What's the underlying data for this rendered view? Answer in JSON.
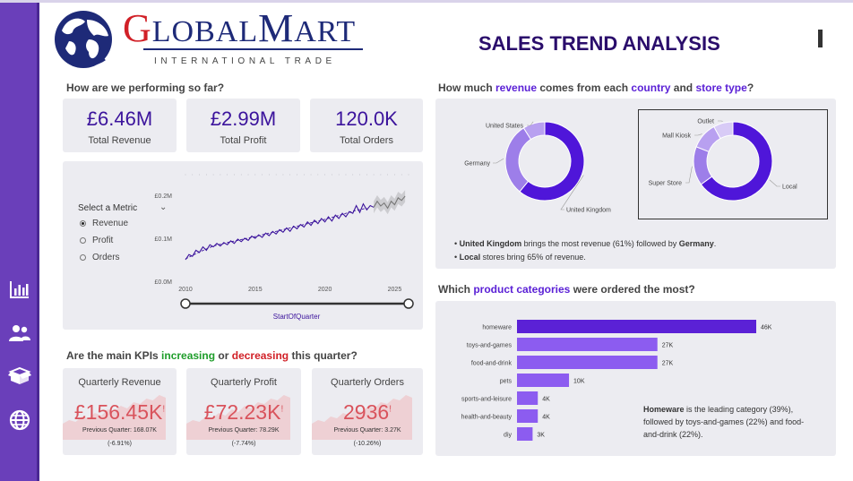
{
  "brand": {
    "logo_first_letter": "G",
    "logo_first_rest": "LOBAL",
    "logo_second_letter": "M",
    "logo_second_rest": "ART",
    "logo_tagline": "INTERNATIONAL TRADE"
  },
  "page_title": "SALES TREND ANALYSIS",
  "sidebar": {
    "items": [
      {
        "icon": "bar-chart-icon"
      },
      {
        "icon": "users-icon"
      },
      {
        "icon": "box-icon"
      },
      {
        "icon": "globe-icon"
      }
    ],
    "colors": {
      "background": "#6a3fba",
      "edge": "#4a2793"
    }
  },
  "performance": {
    "question": "How are we performing so far?",
    "kpis": [
      {
        "value": "£6.46M",
        "label": "Total Revenue"
      },
      {
        "value": "£2.99M",
        "label": "Total Profit"
      },
      {
        "value": "120.0K",
        "label": "Total Orders"
      }
    ]
  },
  "metric_selector": {
    "label": "Select a Metric",
    "options": [
      {
        "label": "Revenue",
        "selected": true
      },
      {
        "label": "Profit",
        "selected": false
      },
      {
        "label": "Orders",
        "selected": false
      }
    ]
  },
  "trend_chart": {
    "slider_label": "StartOfQuarter",
    "chart_data": {
      "type": "line",
      "y_ticks": [
        "£0.0M",
        "£0.1M",
        "£0.2M"
      ],
      "x_ticks": [
        "2010",
        "2015",
        "2020",
        "2025"
      ],
      "xlim": [
        2010,
        2026
      ],
      "ylim": [
        0,
        0.2
      ],
      "series": [
        {
          "values": [
            [
              2010.0,
              0.05
            ],
            [
              2010.25,
              0.062
            ],
            [
              2010.5,
              0.058
            ],
            [
              2010.75,
              0.072
            ],
            [
              2011.0,
              0.067
            ],
            [
              2011.25,
              0.08
            ],
            [
              2011.5,
              0.072
            ],
            [
              2011.75,
              0.085
            ],
            [
              2012.0,
              0.08
            ],
            [
              2012.25,
              0.088
            ],
            [
              2012.5,
              0.082
            ],
            [
              2012.75,
              0.09
            ],
            [
              2013.0,
              0.085
            ],
            [
              2013.25,
              0.094
            ],
            [
              2013.5,
              0.088
            ],
            [
              2013.75,
              0.098
            ],
            [
              2014.0,
              0.092
            ],
            [
              2014.25,
              0.1
            ],
            [
              2014.5,
              0.095
            ],
            [
              2014.75,
              0.105
            ],
            [
              2015.0,
              0.1
            ],
            [
              2015.25,
              0.108
            ],
            [
              2015.5,
              0.102
            ],
            [
              2015.75,
              0.112
            ],
            [
              2016.0,
              0.106
            ],
            [
              2016.25,
              0.116
            ],
            [
              2016.5,
              0.11
            ],
            [
              2016.75,
              0.12
            ],
            [
              2017.0,
              0.114
            ],
            [
              2017.25,
              0.124
            ],
            [
              2017.5,
              0.116
            ],
            [
              2017.75,
              0.128
            ],
            [
              2018.0,
              0.122
            ],
            [
              2018.25,
              0.132
            ],
            [
              2018.5,
              0.126
            ],
            [
              2018.75,
              0.138
            ],
            [
              2019.0,
              0.13
            ],
            [
              2019.25,
              0.142
            ],
            [
              2019.5,
              0.134
            ],
            [
              2019.75,
              0.146
            ],
            [
              2020.0,
              0.138
            ],
            [
              2020.25,
              0.15
            ],
            [
              2020.5,
              0.14
            ],
            [
              2020.75,
              0.154
            ],
            [
              2021.0,
              0.146
            ],
            [
              2021.25,
              0.158
            ],
            [
              2021.5,
              0.15
            ],
            [
              2021.75,
              0.162
            ],
            [
              2022.0,
              0.158
            ],
            [
              2022.25,
              0.176
            ],
            [
              2022.5,
              0.16
            ],
            [
              2022.75,
              0.18
            ],
            [
              2023.0,
              0.166
            ],
            [
              2023.25,
              0.176
            ],
            [
              2023.5,
              0.172
            ]
          ]
        },
        {
          "values": [
            [
              2010.0,
              0.052
            ],
            [
              2011.0,
              0.068
            ],
            [
              2012.0,
              0.082
            ],
            [
              2013.0,
              0.09
            ],
            [
              2014.0,
              0.097
            ],
            [
              2015.0,
              0.104
            ],
            [
              2016.0,
              0.112
            ],
            [
              2017.0,
              0.12
            ],
            [
              2018.0,
              0.128
            ],
            [
              2019.0,
              0.136
            ],
            [
              2020.0,
              0.144
            ],
            [
              2021.0,
              0.153
            ],
            [
              2022.0,
              0.163
            ],
            [
              2023.0,
              0.17
            ]
          ]
        },
        {
          "values": [
            [
              2023.5,
              0.172
            ],
            [
              2023.75,
              0.186
            ],
            [
              2024.0,
              0.175
            ],
            [
              2024.25,
              0.182
            ],
            [
              2024.5,
              0.17
            ],
            [
              2024.75,
              0.186
            ],
            [
              2025.0,
              0.178
            ],
            [
              2025.25,
              0.194
            ],
            [
              2025.5,
              0.188
            ],
            [
              2025.75,
              0.198
            ]
          ]
        }
      ],
      "colors": {
        "actual": "#3b139c",
        "trend": "#3b139c",
        "forecast": "#777777",
        "band": "#c9c9cc"
      }
    }
  },
  "country_store": {
    "question_parts": [
      "How much ",
      "revenue",
      " comes from each ",
      "country",
      " and ",
      "store type",
      "?"
    ],
    "country_donut": {
      "chart_data": {
        "type": "pie",
        "labels": [
          "United Kingdom",
          "Germany",
          "United States"
        ],
        "values": [
          61,
          30,
          9
        ]
      }
    },
    "store_donut": {
      "chart_data": {
        "type": "pie",
        "labels": [
          "Local",
          "Super Store",
          "Mall Kiosk",
          "Outlet"
        ],
        "values": [
          65,
          16,
          11,
          8
        ]
      }
    },
    "colors": [
      "#4f16d9",
      "#9d7ee9",
      "#b8a0f0",
      "#d8cbf6"
    ],
    "notes": [
      {
        "bold": "United Kingdom",
        "mid": " brings the most revenue (61%) followed by ",
        "bold2": "Germany",
        "end": "."
      },
      {
        "bold": "Local",
        "mid": " stores bring 65% of revenue.",
        "bold2": "",
        "end": ""
      }
    ]
  },
  "kpi_trend": {
    "question_parts": [
      "Are the main KPIs ",
      "increasing",
      " or ",
      "decreasing",
      " this quarter?"
    ],
    "cards": [
      {
        "title": "Quarterly Revenue",
        "value": "£156.45K",
        "flag": "!",
        "prev": "Previous Quarter: 168.07K",
        "change": "(-6.91%)"
      },
      {
        "title": "Quarterly Profit",
        "value": "£72.23K",
        "flag": "!",
        "prev": "Previous Quarter: 78.29K",
        "change": "(-7.74%)"
      },
      {
        "title": "Quarterly Orders",
        "value": "2936",
        "flag": "!",
        "prev": "Previous Quarter: 3.27K",
        "change": "(-10.26%)"
      }
    ],
    "colors": {
      "value": "#d9535c",
      "sparkline": "#efc7c9"
    }
  },
  "categories": {
    "question_parts": [
      "Which ",
      "product categories",
      " were ordered the most?"
    ],
    "chart_data": {
      "type": "bar",
      "orientation": "horizontal",
      "categories": [
        "homeware",
        "toys-and-games",
        "food-and-drink",
        "pets",
        "sports-and-leisure",
        "health-and-beauty",
        "diy"
      ],
      "values": [
        46,
        27,
        27,
        10,
        4,
        4,
        3
      ],
      "value_labels": [
        "46K",
        "27K",
        "27K",
        "10K",
        "4K",
        "4K",
        "3K"
      ],
      "xlim": [
        0,
        46
      ],
      "colors": {
        "top": "#5b21d6",
        "rest": "#8c5cf0"
      }
    },
    "note": {
      "bold": "Homeware",
      "rest": " is the leading category (39%), followed by toys-and-games (22%) and food-and-drink (22%)."
    }
  }
}
